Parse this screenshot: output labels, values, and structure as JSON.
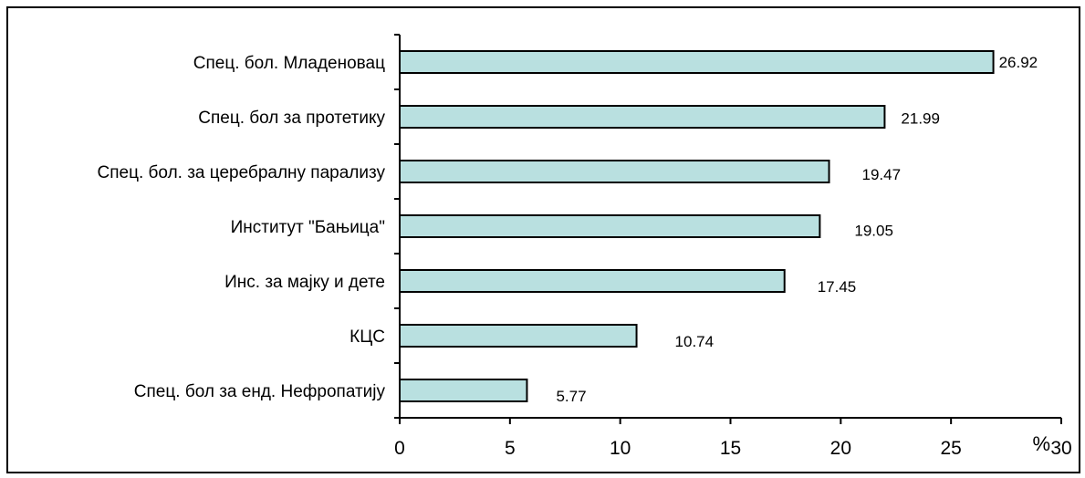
{
  "chart_data": {
    "type": "bar",
    "orientation": "horizontal",
    "categories": [
      "Спец. бол. Младеновац",
      "Спец. бол за протетику",
      "Спец. бол. за церебралну парализу",
      "Институт \"Бањица\"",
      "Инс. за мајку и дете",
      "КЦС",
      "Спец. бол за енд. Нефропатију"
    ],
    "values": [
      26.92,
      21.99,
      19.47,
      19.05,
      17.45,
      10.74,
      5.77
    ],
    "data_labels": [
      "26.92",
      "21.99",
      "19.47",
      "19.05",
      "17.45",
      "10.74",
      "5.77"
    ],
    "xlim": [
      0,
      30
    ],
    "xticks": [
      0,
      5,
      10,
      15,
      20,
      25,
      30
    ],
    "xtick_labels": [
      "0",
      "5",
      "10",
      "15",
      "20",
      "25",
      "30"
    ],
    "xunit": "%",
    "bar_color": "#b9e0e0",
    "bar_edge_color": "#000000",
    "grid": false,
    "legend": "none"
  }
}
